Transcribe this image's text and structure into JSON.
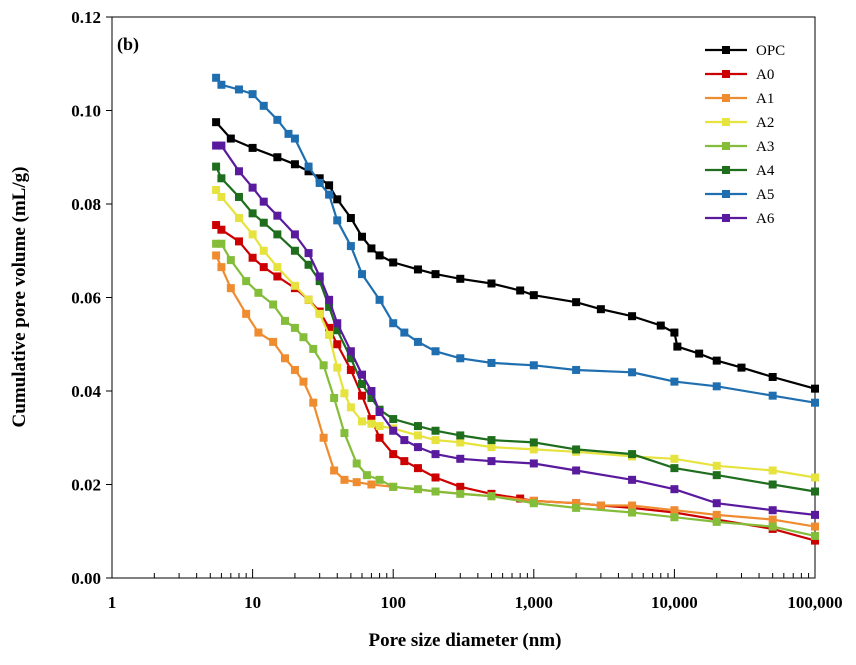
{
  "chart_data": {
    "type": "line",
    "panel_label": "(b)",
    "xlabel": "Pore size diameter (nm)",
    "ylabel": "Cumulative pore volume (mL/g)",
    "xscale": "log",
    "xlim": [
      1,
      100000
    ],
    "ylim": [
      0,
      0.12
    ],
    "x_ticks": [
      1,
      10,
      100,
      1000,
      10000,
      100000
    ],
    "x_tick_labels": [
      "1",
      "10",
      "100",
      "1,000",
      "10,000",
      "100,000"
    ],
    "y_ticks": [
      0,
      0.02,
      0.04,
      0.06,
      0.08,
      0.1,
      0.12
    ],
    "y_tick_labels": [
      "0.00",
      "0.02",
      "0.04",
      "0.06",
      "0.08",
      "0.10",
      "0.12"
    ],
    "grid": false,
    "legend_position": "top-right",
    "marker": "square",
    "series": [
      {
        "name": "OPC",
        "color": "#000000",
        "x": [
          5.5,
          7,
          10,
          15,
          20,
          25,
          30,
          35,
          40,
          50,
          60,
          70,
          80,
          100,
          150,
          200,
          300,
          500,
          800,
          1000,
          2000,
          3000,
          5000,
          8000,
          10000,
          10500,
          15000,
          20000,
          30000,
          50000,
          100000
        ],
        "y": [
          0.0975,
          0.094,
          0.092,
          0.09,
          0.0885,
          0.087,
          0.0855,
          0.084,
          0.081,
          0.077,
          0.073,
          0.0705,
          0.069,
          0.0675,
          0.066,
          0.065,
          0.064,
          0.063,
          0.0615,
          0.0605,
          0.059,
          0.0575,
          0.056,
          0.054,
          0.0525,
          0.0495,
          0.048,
          0.0465,
          0.045,
          0.043,
          0.0405
        ]
      },
      {
        "name": "A0",
        "color": "#cc0000",
        "x": [
          5.5,
          6,
          8,
          10,
          12,
          15,
          20,
          25,
          30,
          35,
          40,
          50,
          60,
          70,
          80,
          100,
          120,
          150,
          200,
          300,
          500,
          800,
          1000,
          2000,
          3000,
          5000,
          10000,
          20000,
          50000,
          100000
        ],
        "y": [
          0.0755,
          0.0745,
          0.072,
          0.0685,
          0.0665,
          0.0645,
          0.062,
          0.0595,
          0.057,
          0.0535,
          0.05,
          0.0445,
          0.039,
          0.034,
          0.03,
          0.0265,
          0.025,
          0.0235,
          0.0215,
          0.0195,
          0.018,
          0.017,
          0.0165,
          0.016,
          0.0155,
          0.015,
          0.014,
          0.0125,
          0.0105,
          0.008
        ]
      },
      {
        "name": "A1",
        "color": "#f08c30",
        "x": [
          5.5,
          6,
          7,
          9,
          11,
          14,
          17,
          20,
          23,
          27,
          32,
          38,
          45,
          55,
          70,
          100,
          200,
          500,
          1000,
          2000,
          3000,
          5000,
          10000,
          20000,
          50000,
          100000
        ],
        "y": [
          0.069,
          0.0665,
          0.062,
          0.0565,
          0.0525,
          0.0505,
          0.047,
          0.0445,
          0.042,
          0.0375,
          0.03,
          0.023,
          0.021,
          0.0205,
          0.02,
          0.0195,
          0.0185,
          0.0175,
          0.0165,
          0.016,
          0.0155,
          0.0155,
          0.0145,
          0.0135,
          0.0125,
          0.011
        ]
      },
      {
        "name": "A2",
        "color": "#e6e23e",
        "x": [
          5.5,
          6,
          8,
          10,
          12,
          15,
          20,
          25,
          30,
          35,
          40,
          45,
          50,
          60,
          70,
          80,
          100,
          150,
          200,
          300,
          500,
          1000,
          2000,
          5000,
          10000,
          20000,
          50000,
          100000
        ],
        "y": [
          0.083,
          0.0815,
          0.077,
          0.0735,
          0.07,
          0.0665,
          0.0625,
          0.0595,
          0.0565,
          0.052,
          0.045,
          0.0395,
          0.0365,
          0.0335,
          0.033,
          0.0325,
          0.032,
          0.0305,
          0.0295,
          0.029,
          0.028,
          0.0275,
          0.027,
          0.026,
          0.0255,
          0.024,
          0.023,
          0.0215
        ]
      },
      {
        "name": "A3",
        "color": "#84bd3a",
        "x": [
          5.5,
          6,
          7,
          9,
          11,
          14,
          17,
          20,
          23,
          27,
          32,
          38,
          45,
          55,
          65,
          80,
          100,
          150,
          200,
          300,
          500,
          1000,
          2000,
          5000,
          10000,
          20000,
          50000,
          100000
        ],
        "y": [
          0.0715,
          0.0715,
          0.068,
          0.0635,
          0.061,
          0.0585,
          0.055,
          0.0535,
          0.0515,
          0.049,
          0.0455,
          0.0385,
          0.031,
          0.0245,
          0.022,
          0.021,
          0.0195,
          0.019,
          0.0185,
          0.018,
          0.0175,
          0.016,
          0.015,
          0.014,
          0.013,
          0.012,
          0.011,
          0.009
        ]
      },
      {
        "name": "A4",
        "color": "#1e6e1e",
        "x": [
          5.5,
          6,
          8,
          10,
          12,
          15,
          20,
          25,
          30,
          35,
          40,
          50,
          60,
          70,
          80,
          100,
          150,
          200,
          300,
          500,
          1000,
          2000,
          5000,
          10000,
          20000,
          50000,
          100000
        ],
        "y": [
          0.088,
          0.0855,
          0.0815,
          0.078,
          0.076,
          0.0735,
          0.07,
          0.067,
          0.0635,
          0.058,
          0.053,
          0.047,
          0.0415,
          0.0385,
          0.036,
          0.034,
          0.0325,
          0.0315,
          0.0305,
          0.0295,
          0.029,
          0.0275,
          0.0265,
          0.0235,
          0.022,
          0.02,
          0.0185
        ]
      },
      {
        "name": "A5",
        "color": "#1f6fb0",
        "x": [
          5.5,
          6,
          8,
          10,
          12,
          15,
          18,
          20,
          25,
          30,
          35,
          40,
          50,
          60,
          80,
          100,
          120,
          150,
          200,
          300,
          500,
          1000,
          2000,
          5000,
          10000,
          20000,
          50000,
          100000
        ],
        "y": [
          0.107,
          0.1055,
          0.1045,
          0.1035,
          0.101,
          0.098,
          0.095,
          0.094,
          0.088,
          0.0845,
          0.082,
          0.0765,
          0.071,
          0.065,
          0.0595,
          0.0545,
          0.0525,
          0.0505,
          0.0485,
          0.047,
          0.046,
          0.0455,
          0.0445,
          0.044,
          0.042,
          0.041,
          0.039,
          0.0375
        ]
      },
      {
        "name": "A6",
        "color": "#5a1a9e",
        "x": [
          5.5,
          6,
          8,
          10,
          12,
          15,
          20,
          25,
          30,
          35,
          40,
          50,
          60,
          70,
          80,
          100,
          120,
          150,
          200,
          300,
          500,
          1000,
          2000,
          5000,
          10000,
          20000,
          50000,
          100000
        ],
        "y": [
          0.0925,
          0.0925,
          0.087,
          0.0835,
          0.0805,
          0.0775,
          0.0735,
          0.0695,
          0.0645,
          0.0595,
          0.0545,
          0.0485,
          0.0435,
          0.04,
          0.0355,
          0.0315,
          0.0295,
          0.028,
          0.0265,
          0.0255,
          0.025,
          0.0245,
          0.023,
          0.021,
          0.019,
          0.016,
          0.0145,
          0.0135
        ]
      }
    ]
  }
}
